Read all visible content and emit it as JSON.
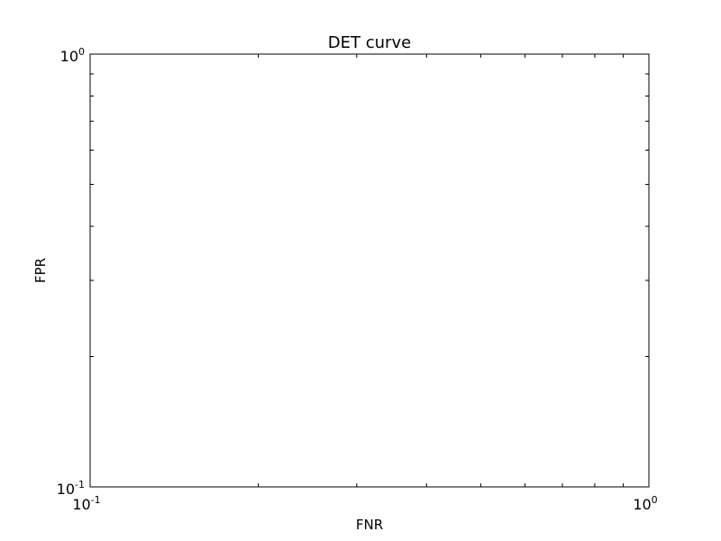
{
  "chart_data": {
    "type": "line",
    "title": "DET curve",
    "xlabel": "FNR",
    "ylabel": "FPR",
    "xscale": "log",
    "yscale": "log",
    "xlim": [
      0.1,
      1
    ],
    "ylim": [
      0.1,
      1
    ],
    "xticks": [
      {
        "value": 0.1,
        "base": "10",
        "exp": "-1"
      },
      {
        "value": 1,
        "base": "10",
        "exp": "0"
      }
    ],
    "yticks": [
      {
        "value": 0.1,
        "base": "10",
        "exp": "-1"
      },
      {
        "value": 1,
        "base": "10",
        "exp": "0"
      }
    ],
    "minor_ticks": [
      0.2,
      0.3,
      0.4,
      0.5,
      0.6,
      0.7,
      0.8,
      0.9
    ],
    "grid": false,
    "series": []
  }
}
